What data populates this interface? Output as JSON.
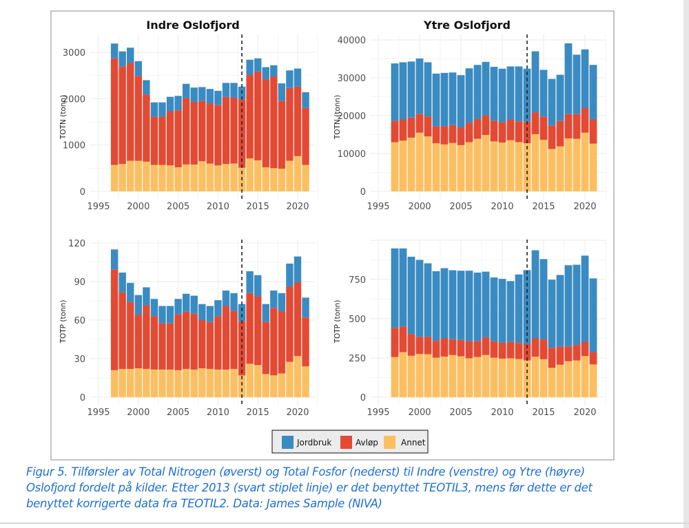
{
  "legend": {
    "items": [
      {
        "label": "Jordbruk",
        "color": "#3a8bc2"
      },
      {
        "label": "Avløp",
        "color": "#e34a33"
      },
      {
        "label": "Annet",
        "color": "#fbbf62"
      }
    ]
  },
  "caption": {
    "lines": [
      "Figur 5. Tilførsler av Total Nitrogen (øverst) og Total Fosfor (nederst) til Indre (venstre) og Ytre (høyre)",
      "Oslofjord fordelt på kilder. Etter 2013 (svart stiplet linje) er det benyttet TEOTIL3, mens før dette er det",
      "benyttet korrigerte data fra TEOTIL2. Data: James Sample (NIVA)"
    ]
  },
  "chart_data": [
    {
      "type": "bar",
      "stacked": true,
      "title": "Indre Oslofjord",
      "xlabel": "",
      "ylabel": "TOTN (tonn)",
      "xlim": [
        1994.5,
        2023
      ],
      "ylim": [
        0,
        3300
      ],
      "xticks": [
        1995,
        2000,
        2005,
        2010,
        2015,
        2020
      ],
      "yticks": [
        0,
        1000,
        2000,
        3000
      ],
      "grid": true,
      "vline": 2013,
      "categories": [
        1997,
        1998,
        1999,
        2000,
        2001,
        2002,
        2003,
        2004,
        2005,
        2006,
        2007,
        2008,
        2009,
        2010,
        2011,
        2012,
        2013,
        2014,
        2015,
        2016,
        2017,
        2018,
        2019,
        2020,
        2021
      ],
      "series": [
        {
          "name": "Annet",
          "values": [
            570,
            590,
            660,
            660,
            640,
            570,
            570,
            560,
            520,
            580,
            580,
            650,
            600,
            560,
            590,
            600,
            510,
            710,
            670,
            520,
            500,
            490,
            660,
            760,
            570
          ]
        },
        {
          "name": "Avløp",
          "values": [
            2300,
            2100,
            2110,
            1830,
            1450,
            1040,
            1040,
            1170,
            1230,
            1430,
            1350,
            1300,
            1300,
            1300,
            1450,
            1420,
            1470,
            1800,
            1920,
            1900,
            1980,
            1460,
            1570,
            1500,
            1230
          ]
        },
        {
          "name": "Jordbruk",
          "values": [
            320,
            330,
            330,
            320,
            310,
            310,
            310,
            310,
            310,
            310,
            310,
            300,
            310,
            310,
            300,
            320,
            280,
            330,
            280,
            260,
            240,
            380,
            380,
            390,
            340
          ]
        }
      ]
    },
    {
      "type": "bar",
      "stacked": true,
      "title": "Ytre Oslofjord",
      "xlabel": "",
      "ylabel": "TOTN (tonn)",
      "xlim": [
        1994.5,
        2023
      ],
      "ylim": [
        0,
        40500
      ],
      "xticks": [
        1995,
        2000,
        2005,
        2010,
        2015,
        2020
      ],
      "yticks": [
        0,
        10000,
        20000,
        30000,
        40000
      ],
      "grid": true,
      "vline": 2013,
      "categories": [
        1997,
        1998,
        1999,
        2000,
        2001,
        2002,
        2003,
        2004,
        2005,
        2006,
        2007,
        2008,
        2009,
        2010,
        2011,
        2012,
        2013,
        2014,
        2015,
        2016,
        2017,
        2018,
        2019,
        2020,
        2021
      ],
      "series": [
        {
          "name": "Annet",
          "values": [
            13000,
            13400,
            14200,
            15500,
            14500,
            12700,
            12400,
            12800,
            12200,
            13000,
            13900,
            14900,
            13200,
            12900,
            13500,
            13000,
            12700,
            15100,
            13600,
            11200,
            11900,
            14000,
            13900,
            15500,
            12600
          ]
        },
        {
          "name": "Avløp",
          "values": [
            5600,
            5600,
            5300,
            5000,
            5300,
            4500,
            4800,
            4700,
            4700,
            5100,
            5200,
            5200,
            5500,
            5300,
            5500,
            5500,
            5700,
            5800,
            6100,
            6200,
            6700,
            6400,
            6500,
            6500,
            6400
          ]
        },
        {
          "name": "Jordbruk",
          "values": [
            15200,
            15100,
            14800,
            14600,
            14300,
            13900,
            14100,
            13900,
            13800,
            14400,
            14300,
            14100,
            14200,
            14200,
            14000,
            14500,
            14000,
            16100,
            12400,
            12300,
            12200,
            18700,
            15700,
            15500,
            14400
          ]
        }
      ]
    },
    {
      "type": "bar",
      "stacked": true,
      "title": "",
      "xlabel": "",
      "ylabel": "TOTP (tonn)",
      "xlim": [
        1994.5,
        2023
      ],
      "ylim": [
        0,
        120
      ],
      "xticks": [
        1995,
        2000,
        2005,
        2010,
        2015,
        2020
      ],
      "yticks": [
        0,
        30,
        60,
        90,
        120
      ],
      "grid": true,
      "vline": 2013,
      "categories": [
        1997,
        1998,
        1999,
        2000,
        2001,
        2002,
        2003,
        2004,
        2005,
        2006,
        2007,
        2008,
        2009,
        2010,
        2011,
        2012,
        2013,
        2014,
        2015,
        2016,
        2017,
        2018,
        2019,
        2020,
        2021
      ],
      "series": [
        {
          "name": "Annet",
          "values": [
            21,
            22,
            22,
            22.5,
            22,
            21.5,
            21.5,
            21.5,
            21,
            22,
            21.5,
            22.5,
            22,
            21.5,
            21.5,
            22,
            17,
            26,
            25,
            18,
            17,
            18.5,
            27.5,
            32,
            24
          ]
        },
        {
          "name": "Avløp",
          "values": [
            78.5,
            59.5,
            52,
            41.5,
            49.5,
            41.5,
            36,
            36,
            43.5,
            44.5,
            43.5,
            37.5,
            36.5,
            41.5,
            49.5,
            45,
            42,
            55,
            53.5,
            40.5,
            52.5,
            48.5,
            58.5,
            57.5,
            38
          ]
        },
        {
          "name": "Jordbruk",
          "values": [
            15.5,
            15.5,
            15,
            15.5,
            14,
            13.5,
            13.5,
            13.5,
            12,
            14,
            14,
            12.5,
            12.5,
            12.5,
            12,
            14,
            13.5,
            17,
            16.5,
            14,
            13.5,
            14,
            18,
            20,
            15.5
          ]
        }
      ]
    },
    {
      "type": "bar",
      "stacked": true,
      "title": "",
      "xlabel": "",
      "ylabel": "TOTP (tonn)",
      "xlim": [
        1994.5,
        2023
      ],
      "ylim": [
        0,
        1000
      ],
      "xticks": [
        1995,
        2000,
        2005,
        2010,
        2015,
        2020
      ],
      "yticks": [
        0,
        250,
        500,
        750
      ],
      "grid": true,
      "vline": 2013,
      "categories": [
        1997,
        1998,
        1999,
        2000,
        2001,
        2002,
        2003,
        2004,
        2005,
        2006,
        2007,
        2008,
        2009,
        2010,
        2011,
        2012,
        2013,
        2014,
        2015,
        2016,
        2017,
        2018,
        2019,
        2020,
        2021
      ],
      "series": [
        {
          "name": "Annet",
          "values": [
            256,
            287,
            264,
            275,
            274,
            252,
            259,
            269,
            261,
            248,
            256,
            269,
            252,
            246,
            248,
            243,
            234,
            258,
            242,
            187,
            207,
            229,
            234,
            262,
            209
          ]
        },
        {
          "name": "Avløp",
          "values": [
            186,
            164,
            139,
            110,
            111,
            107,
            116,
            100,
            104,
            109,
            101,
            113,
            105,
            101,
            106,
            103,
            106,
            117,
            126,
            128,
            117,
            95,
            99,
            91,
            80
          ]
        },
        {
          "name": "Jordbruk",
          "values": [
            506,
            497,
            492,
            490,
            468,
            444,
            447,
            440,
            441,
            449,
            437,
            418,
            406,
            407,
            386,
            436,
            470,
            561,
            512,
            434,
            455,
            517,
            511,
            549,
            468
          ]
        }
      ]
    }
  ]
}
